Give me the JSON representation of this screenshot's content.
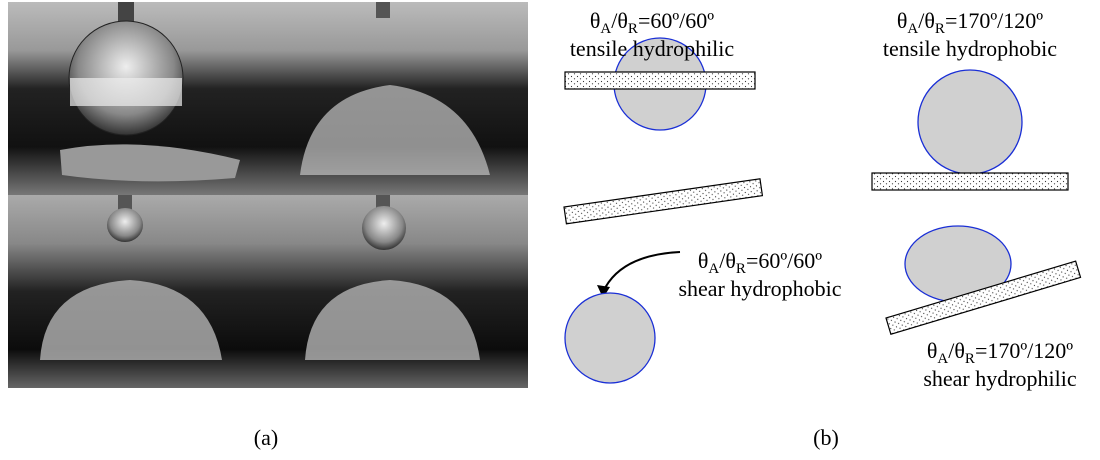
{
  "panel_a": {
    "label": "(a)"
  },
  "panel_b": {
    "label": "(b)",
    "diagrams": [
      {
        "angle": [
          "θ",
          "A",
          "/θ",
          "R",
          "=60º/60º"
        ],
        "caption": "tensile hydrophilic"
      },
      {
        "angle": [
          "θ",
          "A",
          "/θ",
          "R",
          "=60º/60º"
        ],
        "caption": "shear hydrophobic"
      },
      {
        "angle": [
          "θ",
          "A",
          "/θ",
          "R",
          "=170º/120º"
        ],
        "caption": "tensile hydrophobic"
      },
      {
        "angle": [
          "θ",
          "A",
          "/θ",
          "R",
          "=170º/120º"
        ],
        "caption": "shear hydrophilic"
      }
    ]
  }
}
